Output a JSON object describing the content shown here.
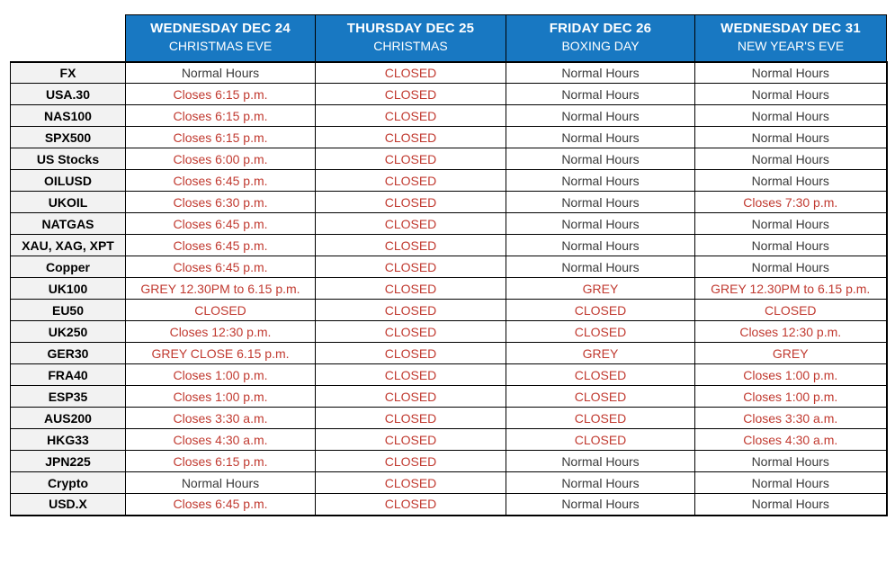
{
  "theme": {
    "header_bg": "#1878C2",
    "header_text": "#FFFFFF",
    "label_bg": "#F2F2F2",
    "normal_text_color": "#3A3A3A",
    "restricted_text_color": "#C13A30",
    "border_color": "#000000",
    "page_bg": "#FFFFFF"
  },
  "table": {
    "normal_text": "Normal Hours",
    "columns": [
      {
        "day": "WEDNESDAY DEC 24",
        "holiday": "CHRISTMAS EVE"
      },
      {
        "day": "THURSDAY DEC 25",
        "holiday": "CHRISTMAS"
      },
      {
        "day": "FRIDAY DEC 26",
        "holiday": "BOXING DAY"
      },
      {
        "day": "WEDNESDAY DEC 31",
        "holiday": "NEW YEAR'S EVE"
      }
    ],
    "rows": [
      {
        "label": "FX",
        "cells": [
          "Normal Hours",
          "CLOSED",
          "Normal Hours",
          "Normal Hours"
        ]
      },
      {
        "label": "USA.30",
        "cells": [
          "Closes 6:15 p.m.",
          "CLOSED",
          "Normal Hours",
          "Normal Hours"
        ]
      },
      {
        "label": "NAS100",
        "cells": [
          "Closes 6:15 p.m.",
          "CLOSED",
          "Normal Hours",
          "Normal Hours"
        ]
      },
      {
        "label": "SPX500",
        "cells": [
          "Closes 6:15 p.m.",
          "CLOSED",
          "Normal Hours",
          "Normal Hours"
        ]
      },
      {
        "label": "US Stocks",
        "cells": [
          "Closes 6:00 p.m.",
          "CLOSED",
          "Normal Hours",
          "Normal Hours"
        ]
      },
      {
        "label": "OILUSD",
        "cells": [
          "Closes 6:45 p.m.",
          "CLOSED",
          "Normal Hours",
          "Normal Hours"
        ]
      },
      {
        "label": "UKOIL",
        "cells": [
          "Closes 6:30 p.m.",
          "CLOSED",
          "Normal Hours",
          "Closes 7:30 p.m."
        ]
      },
      {
        "label": "NATGAS",
        "cells": [
          "Closes 6:45 p.m.",
          "CLOSED",
          "Normal Hours",
          "Normal Hours"
        ]
      },
      {
        "label": "XAU, XAG, XPT",
        "cells": [
          "Closes 6:45 p.m.",
          "CLOSED",
          "Normal Hours",
          "Normal Hours"
        ]
      },
      {
        "label": "Copper",
        "cells": [
          "Closes 6:45 p.m.",
          "CLOSED",
          "Normal Hours",
          "Normal Hours"
        ]
      },
      {
        "label": "UK100",
        "cells": [
          "GREY 12.30PM to 6.15 p.m.",
          "CLOSED",
          "GREY",
          "GREY 12.30PM to 6.15 p.m."
        ]
      },
      {
        "label": "EU50",
        "cells": [
          "CLOSED",
          "CLOSED",
          "CLOSED",
          "CLOSED"
        ]
      },
      {
        "label": "UK250",
        "cells": [
          "Closes 12:30 p.m.",
          "CLOSED",
          "CLOSED",
          "Closes 12:30 p.m."
        ]
      },
      {
        "label": "GER30",
        "cells": [
          "GREY CLOSE 6.15 p.m.",
          "CLOSED",
          "GREY",
          "GREY"
        ]
      },
      {
        "label": "FRA40",
        "cells": [
          "Closes 1:00 p.m.",
          "CLOSED",
          "CLOSED",
          "Closes 1:00 p.m."
        ]
      },
      {
        "label": "ESP35",
        "cells": [
          "Closes 1:00 p.m.",
          "CLOSED",
          "CLOSED",
          "Closes 1:00 p.m."
        ]
      },
      {
        "label": "AUS200",
        "cells": [
          "Closes 3:30 a.m.",
          "CLOSED",
          "CLOSED",
          "Closes 3:30 a.m."
        ]
      },
      {
        "label": "HKG33",
        "cells": [
          "Closes 4:30 a.m.",
          "CLOSED",
          "CLOSED",
          "Closes 4:30 a.m."
        ]
      },
      {
        "label": "JPN225",
        "cells": [
          "Closes 6:15 p.m.",
          "CLOSED",
          "Normal Hours",
          "Normal Hours"
        ]
      },
      {
        "label": "Crypto",
        "cells": [
          "Normal Hours",
          "CLOSED",
          "Normal Hours",
          "Normal Hours"
        ]
      },
      {
        "label": "USD.X",
        "cells": [
          "Closes 6:45 p.m.",
          "CLOSED",
          "Normal Hours",
          "Normal Hours"
        ]
      }
    ]
  }
}
